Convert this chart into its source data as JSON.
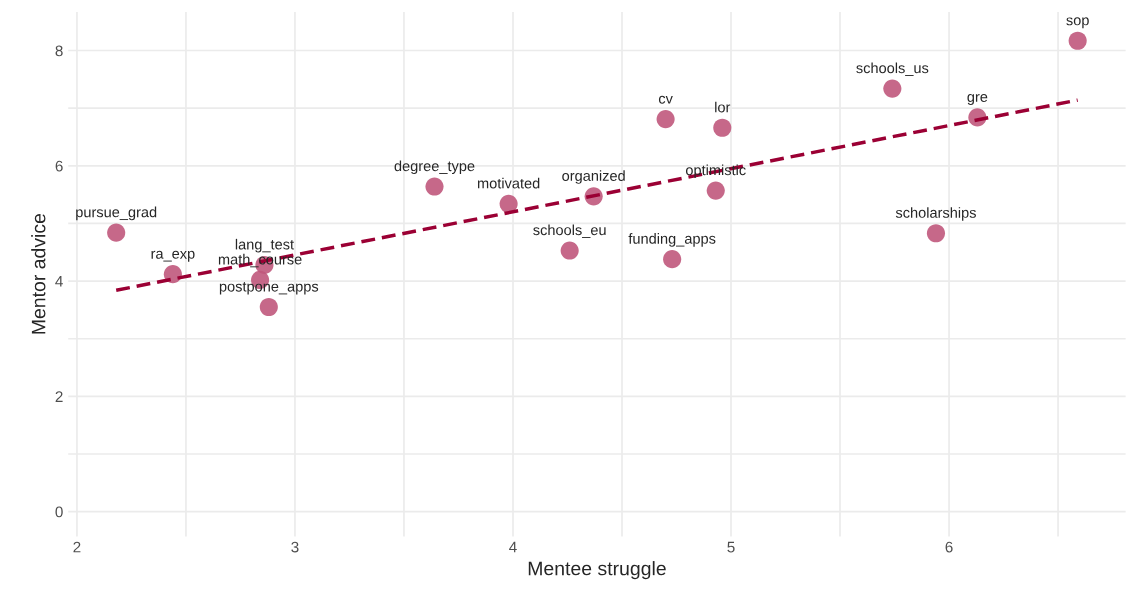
{
  "chart_data": {
    "type": "scatter",
    "xlabel": "Mentee struggle",
    "ylabel": "Mentor advice",
    "xlim": [
      1.96,
      6.81
    ],
    "ylim": [
      -0.43,
      8.67
    ],
    "xticks": [
      2,
      {
        "value": 2.5,
        "label": null
      },
      3,
      {
        "value": 3.5,
        "label": null
      },
      4,
      {
        "value": 4.5,
        "label": null
      },
      5,
      {
        "value": 5.5,
        "label": null
      },
      6,
      {
        "value": 6.5,
        "label": null
      }
    ],
    "yticks": [
      0,
      {
        "value": 1,
        "label": null
      },
      2,
      {
        "value": 3,
        "label": null
      },
      4,
      {
        "value": 5,
        "label": null
      },
      6,
      {
        "value": 7,
        "label": null
      },
      8
    ],
    "grid": true,
    "series": [
      {
        "marker": "circle",
        "color": "#c0587c",
        "x": [
          2.18,
          2.44,
          2.86,
          2.84,
          2.88,
          3.64,
          3.98,
          4.26,
          4.37,
          4.7,
          4.73,
          4.96,
          4.93,
          5.74,
          5.94,
          6.13,
          6.59
        ],
        "values": [
          4.84,
          4.12,
          4.28,
          4.02,
          3.55,
          5.64,
          5.34,
          4.53,
          5.47,
          6.81,
          4.38,
          6.66,
          5.57,
          7.34,
          4.83,
          6.84,
          8.17
        ]
      },
      {
        "type": "line",
        "color": "#9b0034",
        "line_style": "dashed",
        "x": [
          2.18,
          6.59
        ],
        "values": [
          3.84,
          7.14
        ]
      }
    ],
    "annotations": [
      {
        "text": "pursue_grad",
        "x": 2.18,
        "y": 4.84
      },
      {
        "text": "ra_exp",
        "x": 2.44,
        "y": 4.12
      },
      {
        "text": "lang_test",
        "x": 2.86,
        "y": 4.28
      },
      {
        "text": "math_course",
        "x": 2.84,
        "y": 4.02
      },
      {
        "text": "postpone_apps",
        "x": 2.88,
        "y": 3.55
      },
      {
        "text": "degree_type",
        "x": 3.64,
        "y": 5.64
      },
      {
        "text": "motivated",
        "x": 3.98,
        "y": 5.34
      },
      {
        "text": "schools_eu",
        "x": 4.26,
        "y": 4.53
      },
      {
        "text": "organized",
        "x": 4.37,
        "y": 5.47
      },
      {
        "text": "cv",
        "x": 4.7,
        "y": 6.81
      },
      {
        "text": "funding_apps",
        "x": 4.73,
        "y": 4.38
      },
      {
        "text": "lor",
        "x": 4.96,
        "y": 6.66
      },
      {
        "text": "optimistic",
        "x": 4.93,
        "y": 5.57
      },
      {
        "text": "schools_us",
        "x": 5.74,
        "y": 7.34
      },
      {
        "text": "scholarships",
        "x": 5.94,
        "y": 4.83
      },
      {
        "text": "gre",
        "x": 6.13,
        "y": 6.84
      },
      {
        "text": "sop",
        "x": 6.59,
        "y": 8.17
      }
    ]
  }
}
